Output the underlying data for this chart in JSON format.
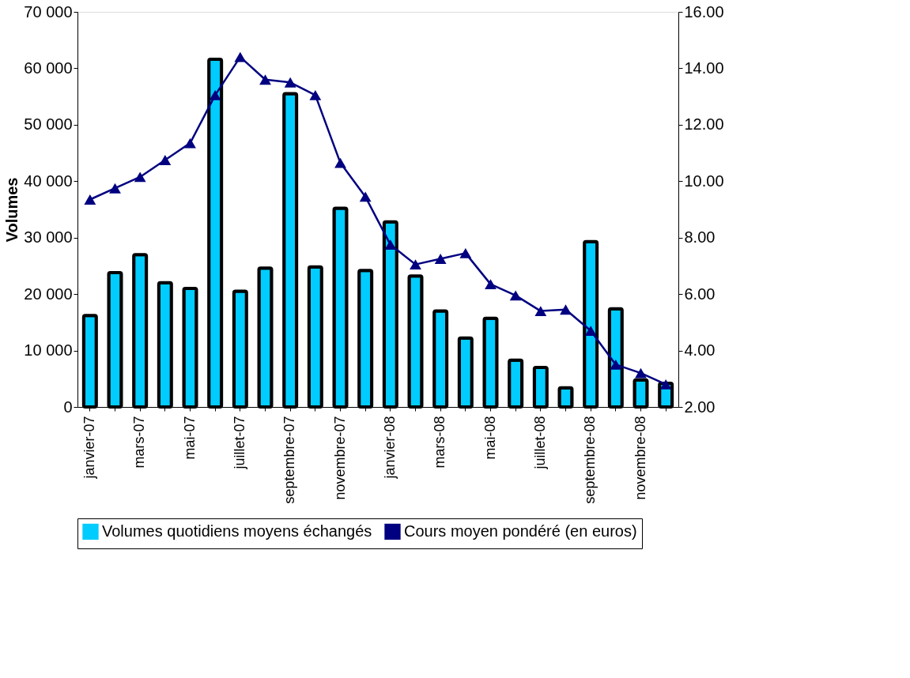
{
  "chart_data": {
    "type": "bar",
    "ylabel": "Volumes",
    "categories": [
      "janvier-07",
      null,
      "mars-07",
      null,
      "mai-07",
      null,
      "juillet-07",
      null,
      "septembre-07",
      null,
      "novembre-07",
      null,
      "janvier-08",
      null,
      "mars-08",
      null,
      "mai-08",
      null,
      "juillet-08",
      null,
      "septembre-08",
      null,
      "novembre-08",
      null
    ],
    "series": [
      {
        "name": "Volumes quotidiens moyens échangés",
        "color": "#00ccff",
        "values": [
          16200,
          23800,
          27000,
          22000,
          21000,
          61600,
          20500,
          24600,
          55500,
          24800,
          35200,
          24200,
          32800,
          23200,
          17000,
          12200,
          15700,
          8300,
          7000,
          3400,
          29300,
          17400,
          4800,
          4200
        ]
      },
      {
        "name": "Cours moyen pondéré (en euros)",
        "type": "line",
        "axis": "y2",
        "color": "#000080",
        "marker": "triangle",
        "line_style": "solid",
        "values": [
          9.35,
          9.75,
          10.15,
          10.75,
          11.35,
          13.05,
          14.4,
          13.6,
          13.5,
          13.05,
          10.65,
          9.45,
          7.75,
          7.05,
          7.25,
          7.45,
          6.35,
          5.95,
          5.4,
          5.45,
          4.7,
          3.5,
          3.2,
          2.8
        ]
      }
    ],
    "ylim": [
      0,
      70000
    ],
    "yticks": [
      {
        "value": 0,
        "label": "0"
      },
      {
        "value": 10000,
        "label": "10 000"
      },
      {
        "value": 20000,
        "label": "20 000"
      },
      {
        "value": 30000,
        "label": "30 000"
      },
      {
        "value": 40000,
        "label": "40 000"
      },
      {
        "value": 50000,
        "label": "50 000"
      },
      {
        "value": 60000,
        "label": "60 000"
      },
      {
        "value": 70000,
        "label": "70 000"
      }
    ],
    "y2lim": [
      2,
      16
    ],
    "y2ticks": [
      {
        "value": 2,
        "label": "2.00"
      },
      {
        "value": 4,
        "label": "4.00"
      },
      {
        "value": 6,
        "label": "6.00"
      },
      {
        "value": 8,
        "label": "8.00"
      },
      {
        "value": 10,
        "label": "10.00"
      },
      {
        "value": 12,
        "label": "12.00"
      },
      {
        "value": 14,
        "label": "14.00"
      },
      {
        "value": 16,
        "label": "16.00"
      }
    ],
    "grid": false,
    "legend": "bottom"
  }
}
